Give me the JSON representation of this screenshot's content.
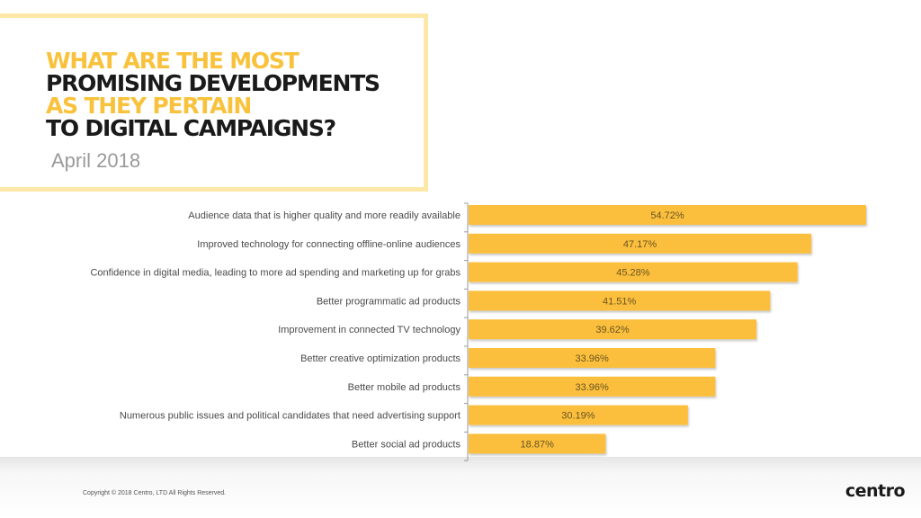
{
  "header": {
    "title_lines": [
      "WHAT ARE THE MOST",
      "PROMISING DEVELOPMENTS",
      "AS THEY PERTAIN",
      "TO DIGITAL CAMPAIGNS?"
    ],
    "subtitle": "April 2018"
  },
  "chart_data": {
    "type": "bar",
    "orientation": "horizontal",
    "categories": [
      "Audience data that is higher quality and more readily available",
      "Improved technology for connecting offline-online audiences",
      "Confidence in digital media, leading to more ad spending and marketing up for grabs",
      "Better programmatic ad products",
      "Improvement in connected TV technology",
      "Better creative optimization products",
      "Better mobile ad products",
      "Numerous public issues and political candidates that need advertising support",
      "Better social ad products"
    ],
    "values": [
      54.72,
      47.17,
      45.28,
      41.51,
      39.62,
      33.96,
      33.96,
      30.19,
      18.87
    ],
    "value_labels": [
      "54.72%",
      "47.17%",
      "45.28%",
      "41.51%",
      "39.62%",
      "33.96%",
      "33.96%",
      "30.19%",
      "18.87%"
    ],
    "xlim": [
      0,
      54.72
    ],
    "bar_color": "#fbbf3c",
    "grid": false,
    "legend": "none"
  },
  "footer": {
    "copyright": "Copyright © 2018 Centro, LTD All Rights Reserved.",
    "logo_text": "centro"
  }
}
